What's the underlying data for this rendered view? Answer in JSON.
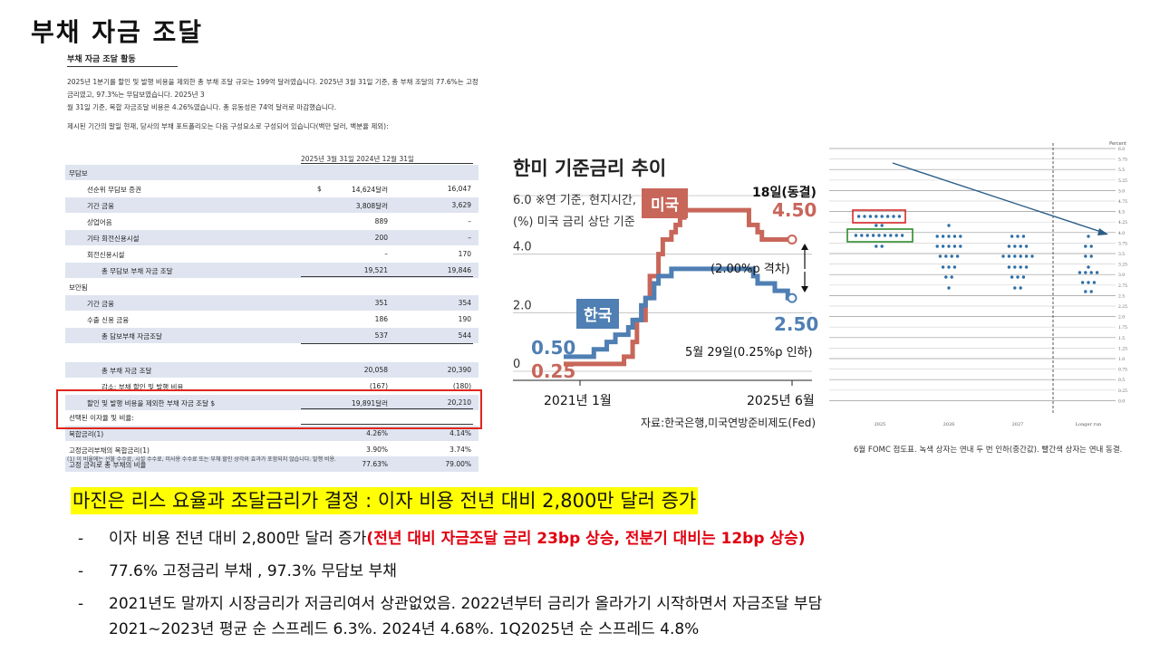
{
  "slide_title": "부채 자금 조달",
  "report": {
    "title": "부채 자금 조달 활동",
    "paragraph_line1": "2025년 1분기를 할인 및 발행 비용을 제외한 총 부채 조달 규모는 199억 달러였습니다. 2025년 3월 31일 기준, 총 부채 조달의 77.6%는 고정 금리였고, 97.3%는 무담보였습니다. 2025년 3",
    "paragraph_line2": "월 31일 기준, 복합 자금조달 비용은 4.26%였습니다. 총 유동성은 74억 달러로 마감했습니다.",
    "note": "제시된 기간의 말일 현재, 당사의 부채 포트폴리오는 다음 구성요소로 구성되어 있습니다(백만 달러, 백분율 제외):",
    "col_header": "2025년 3월 31일 2024년 12월 31일",
    "rows": [
      {
        "label": "무담보",
        "cur": "",
        "v1": "",
        "v2": ""
      },
      {
        "label": "선순위 무담보 증권",
        "cur": "$",
        "v1": "14,624달러",
        "v2": "16,047"
      },
      {
        "label": "기간 금융",
        "cur": "",
        "v1": "3,808달러",
        "v2": "3,629"
      },
      {
        "label": "상업어음",
        "cur": "",
        "v1": "889",
        "v2": "–"
      },
      {
        "label": "기타 회전신용시설",
        "cur": "",
        "v1": "200",
        "v2": "–"
      },
      {
        "label": "회전신용시설",
        "cur": "",
        "v1": "–",
        "v2": "170"
      },
      {
        "label": "총 무담보 부채 자금 조달",
        "cur": "",
        "v1": "19,521",
        "v2": "19,846"
      },
      {
        "label": "보안됨",
        "cur": "",
        "v1": "",
        "v2": ""
      },
      {
        "label": "기간 금융",
        "cur": "",
        "v1": "351",
        "v2": "354"
      },
      {
        "label": "수출 신용 금융",
        "cur": "",
        "v1": "186",
        "v2": "190"
      },
      {
        "label": "총 담보부채 자금조달",
        "cur": "",
        "v1": "537",
        "v2": "544"
      },
      {
        "label": "",
        "cur": "",
        "v1": "",
        "v2": ""
      },
      {
        "label": "총 부채 자금 조달",
        "cur": "",
        "v1": "20,058",
        "v2": "20,390"
      },
      {
        "label": "감소: 부채 할인 및 발행 비용",
        "cur": "",
        "v1": "(167)",
        "v2": "(180)"
      },
      {
        "label": "할인 및 발행 비용을 제외한 부채 자금 조달 $",
        "cur": "",
        "v1": "19,891달러",
        "v2": "20,210"
      },
      {
        "label": "선택된 이자율 및 비율:",
        "cur": "",
        "v1": "",
        "v2": ""
      },
      {
        "label": "복합금리(1)",
        "cur": "",
        "v1": "4.26%",
        "v2": "4.14%"
      },
      {
        "label": "고정금리부채의 복합금리(1)",
        "cur": "",
        "v1": "3.90%",
        "v2": "3.74%"
      },
      {
        "label": "고정 금리로 총 부채의 비율",
        "cur": "",
        "v1": "77.63%",
        "v2": "79.00%"
      }
    ],
    "footnote": "(1) 이 비율에는 선불 수수료, 시설 수수료, 미사용 수수료 또는 부채 할인 상각의 효과가 포함되지 않습니다. 발행 비용."
  },
  "chart_rates": {
    "title": "한미 기준금리 추이",
    "note_line1": "※연 기준, 현지시간,",
    "note_line2": "(%) 미국 금리 상단 기준",
    "us_label": "미국",
    "kr_label": "한국",
    "us_end_date": "18일(동결)",
    "us_end_value": "4.50",
    "gap_note": "(2.00%p 격차)",
    "kr_end_value": "2.50",
    "kr_end_note": "5월 29일(0.25%p 인하)",
    "kr_start_value": "0.50",
    "us_start_value": "0.25",
    "source": "자료:한국은행,미국연방준비제도(Fed)",
    "colors": {
      "us": "#c8665a",
      "kr": "#4f7fb3"
    }
  },
  "chart_data": {
    "type": "line",
    "x_start": "2021년 1월",
    "x_end": "2025년 6월",
    "y_ticks": [
      "0",
      "2.0",
      "4.0",
      "6.0"
    ],
    "ylim": [
      0,
      6
    ],
    "series": [
      {
        "name": "미국",
        "values": [
          0.25,
          0.25,
          0.25,
          0.25,
          0.25,
          0.25,
          0.25,
          0.25,
          0.25,
          0.25,
          0.25,
          0.25,
          0.25,
          0.25,
          0.5,
          0.5,
          1.0,
          1.75,
          1.75,
          2.5,
          3.25,
          3.25,
          4.0,
          4.5,
          4.5,
          4.75,
          5.0,
          5.25,
          5.5,
          5.5,
          5.5,
          5.5,
          5.5,
          5.5,
          5.5,
          5.5,
          5.5,
          5.5,
          5.5,
          5.5,
          5.5,
          5.5,
          5.5,
          5.0,
          5.0,
          4.75,
          4.5,
          4.5,
          4.5,
          4.5,
          4.5,
          4.5,
          4.5,
          4.5
        ]
      },
      {
        "name": "한국",
        "values": [
          0.5,
          0.5,
          0.5,
          0.5,
          0.5,
          0.5,
          0.5,
          0.75,
          0.75,
          0.75,
          1.0,
          1.0,
          1.25,
          1.25,
          1.25,
          1.5,
          1.75,
          1.75,
          2.25,
          2.5,
          2.5,
          3.0,
          3.25,
          3.25,
          3.25,
          3.5,
          3.5,
          3.5,
          3.5,
          3.5,
          3.5,
          3.5,
          3.5,
          3.5,
          3.5,
          3.5,
          3.5,
          3.5,
          3.5,
          3.5,
          3.5,
          3.5,
          3.5,
          3.5,
          3.25,
          3.0,
          3.0,
          3.0,
          3.0,
          2.75,
          2.75,
          2.75,
          2.5,
          2.5
        ]
      }
    ]
  },
  "dot_plot": {
    "y_title": "Percent",
    "y_ticks": [
      "6.0",
      "5.75",
      "5.5",
      "5.25",
      "5.0",
      "4.75",
      "4.5",
      "4.25",
      "4.0",
      "3.75",
      "3.5",
      "3.25",
      "3.0",
      "2.75",
      "2.5",
      "2.25",
      "2.0",
      "1.75",
      "1.5",
      "1.25",
      "1.0",
      "0.75",
      "0.5",
      "0.25",
      "0.0"
    ],
    "x_labels": [
      "2025",
      "2026",
      "2027",
      "Longer run"
    ],
    "caption": "6월 FOMC 점도표. 녹색 상자는 연내 두 번 인하(중간값). 빨간색 상자는 연내 동결.",
    "colors": {
      "dots": "#2e6fa8",
      "red_box": "#d92b2b",
      "green_box": "#2e8b2e",
      "arrow": "#2b5d86"
    }
  },
  "bottom": {
    "headline": "마진은 리스 요율과 조달금리가 결정 : 이자 비용 전년 대비 2,800만 달러 증가",
    "bullet1_text": "이자 비용 전년 대비 2,800만 달러 증가",
    "bullet1_red": "(전년 대비 자금조달 금리 23bp 상승, 전분기 대비는 12bp 상승)",
    "bullet2": "77.6% 고정금리 부채 , 97.3% 무담보 부채",
    "bullet3_line1": "2021년도 말까지 시장금리가 저금리여서 상관없었음. 2022년부터 금리가 올라가기 시작하면서 자금조달 부담",
    "bullet3_line2": "2021~2023년 평균 순 스프레드 6.3%. 2024년 4.68%. 1Q2025년 순 스프레드 4.8%",
    "dash": "-"
  }
}
